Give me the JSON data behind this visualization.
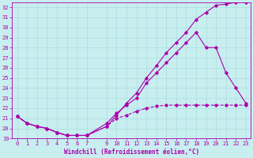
{
  "xlabel": "Windchill (Refroidissement éolien,°C)",
  "bg_color": "#c8eef0",
  "line_color": "#aa00aa",
  "grid_color": "#aadddd",
  "xlim": [
    -0.5,
    23.5
  ],
  "ylim": [
    19,
    32.5
  ],
  "xticks": [
    0,
    1,
    2,
    3,
    4,
    5,
    6,
    7,
    9,
    10,
    11,
    12,
    13,
    14,
    15,
    16,
    17,
    18,
    19,
    20,
    21,
    22,
    23
  ],
  "yticks": [
    19,
    20,
    21,
    22,
    23,
    24,
    25,
    26,
    27,
    28,
    29,
    30,
    31,
    32
  ],
  "line1_x": [
    0,
    1,
    2,
    3,
    4,
    5,
    6,
    7,
    9,
    10,
    11,
    12,
    13,
    14,
    15,
    16,
    17,
    18,
    19,
    20,
    21,
    22,
    23
  ],
  "line1_y": [
    21.2,
    20.5,
    20.2,
    20.0,
    19.6,
    19.3,
    19.3,
    19.3,
    20.2,
    21.3,
    22.5,
    23.5,
    25.0,
    26.2,
    27.5,
    28.5,
    29.5,
    30.8,
    31.5,
    32.2,
    32.3,
    32.5,
    32.5
  ],
  "line2_x": [
    0,
    1,
    2,
    3,
    4,
    5,
    6,
    7,
    9,
    10,
    11,
    12,
    13,
    14,
    15,
    16,
    17,
    18,
    19,
    20,
    21,
    22,
    23
  ],
  "line2_y": [
    21.2,
    20.5,
    20.2,
    20.0,
    19.6,
    19.3,
    19.3,
    19.3,
    20.5,
    21.5,
    22.3,
    23.0,
    24.5,
    25.5,
    26.5,
    27.5,
    28.5,
    29.5,
    28.0,
    28.0,
    25.5,
    24.0,
    22.5
  ],
  "line3_x": [
    0,
    1,
    2,
    3,
    4,
    5,
    6,
    7,
    9,
    10,
    11,
    12,
    13,
    14,
    15,
    16,
    17,
    18,
    19,
    20,
    21,
    22,
    23
  ],
  "line3_y": [
    21.2,
    20.5,
    20.2,
    20.0,
    19.6,
    19.3,
    19.3,
    19.3,
    20.2,
    21.0,
    21.3,
    21.7,
    22.0,
    22.2,
    22.3,
    22.3,
    22.3,
    22.3,
    22.3,
    22.3,
    22.3,
    22.3,
    22.3
  ],
  "tick_font_size": 5.0,
  "xlabel_font_size": 5.5,
  "marker": "D",
  "marker_size": 1.8,
  "line_width": 0.8
}
